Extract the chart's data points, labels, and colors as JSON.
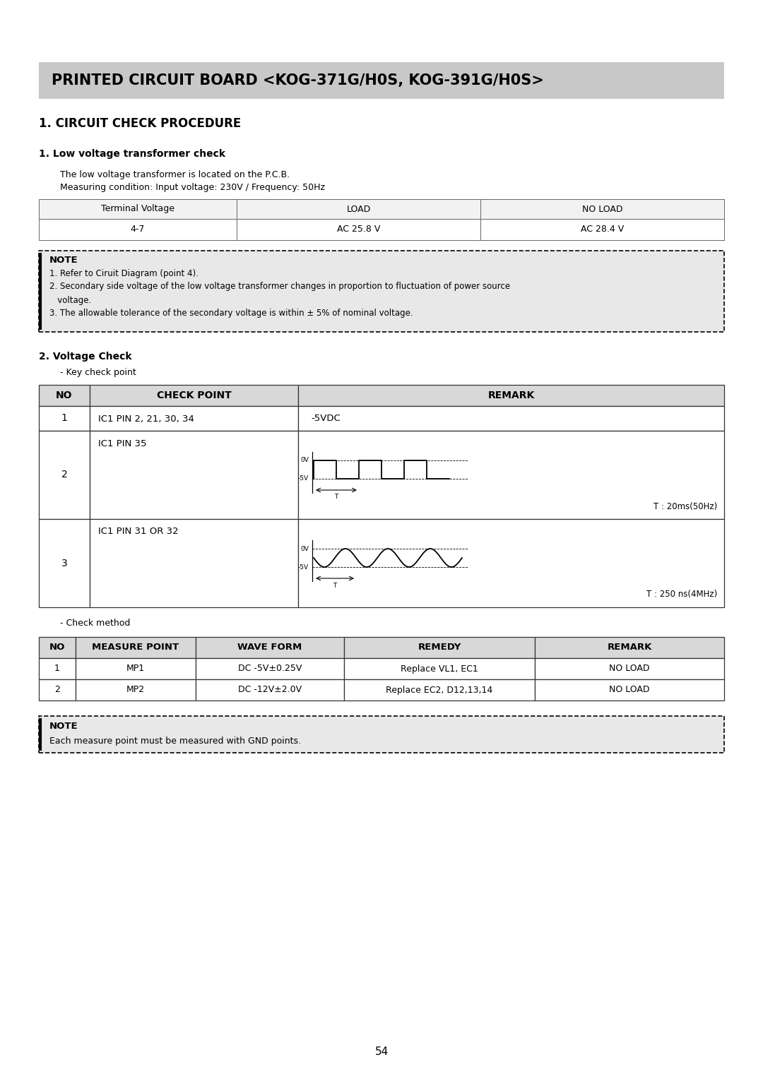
{
  "title": "PRINTED CIRCUIT BOARD <KOG-371G/H0S, KOG-391G/H0S>",
  "title_bg": "#c8c8c8",
  "section1": "1. CIRCUIT CHECK PROCEDURE",
  "subsection1": "1. Low voltage transformer check",
  "desc_line1": "The low voltage transformer is located on the P.C.B.",
  "desc_line2": "Measuring condition: Input voltage: 230V / Frequency: 50Hz",
  "table1_headers": [
    "Terminal Voltage",
    "LOAD",
    "NO LOAD"
  ],
  "table1_row": [
    "4-7",
    "AC 25.8 V",
    "AC 28.4 V"
  ],
  "note_title": "NOTE",
  "note_lines": [
    "1. Refer to Ciruit Diagram (point 4).",
    "2. Secondary side voltage of the low voltage transformer changes in proportion to fluctuation of power source",
    "   voltage.",
    "3. The allowable tolerance of the secondary voltage is within ± 5% of nominal voltage."
  ],
  "subsection2": "2. Voltage Check",
  "key_check_label": "- Key check point",
  "table2_headers": [
    "NO",
    "CHECK POINT",
    "REMARK"
  ],
  "table2_rows": [
    [
      "1",
      "IC1 PIN 2, 21, 30, 34",
      "-5VDC"
    ],
    [
      "2",
      "IC1 PIN 35",
      ""
    ],
    [
      "3",
      "IC1 PIN 31 OR 32",
      ""
    ]
  ],
  "t_label_row2": "T : 20ms(50Hz)",
  "t_label_row3": "T : 250 ns(4MHz)",
  "check_method_label": "- Check method",
  "table3_headers": [
    "NO",
    "MEASURE POINT",
    "WAVE FORM",
    "REMEDY",
    "REMARK"
  ],
  "table3_rows": [
    [
      "1",
      "MP1",
      "DC -5V±0.25V",
      "Replace VL1, EC1",
      "NO LOAD"
    ],
    [
      "2",
      "MP2",
      "DC -12V±2.0V",
      "Replace EC2, D12,13,14",
      "NO LOAD"
    ]
  ],
  "note2_title": "NOTE",
  "note2_line": "Each measure point must be measured with GND points.",
  "page_num": "54",
  "bg_color": "#ffffff",
  "header_bg": "#d8d8d8",
  "note_bg": "#e8e8e8"
}
